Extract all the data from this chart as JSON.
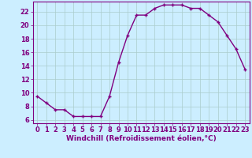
{
  "x": [
    0,
    1,
    2,
    3,
    4,
    5,
    6,
    7,
    8,
    9,
    10,
    11,
    12,
    13,
    14,
    15,
    16,
    17,
    18,
    19,
    20,
    21,
    22,
    23
  ],
  "y": [
    9.5,
    8.5,
    7.5,
    7.5,
    6.5,
    6.5,
    6.5,
    6.5,
    9.5,
    14.5,
    18.5,
    21.5,
    21.5,
    22.5,
    23.0,
    23.0,
    23.0,
    22.5,
    22.5,
    21.5,
    20.5,
    18.5,
    16.5,
    13.5
  ],
  "line_color": "#800080",
  "marker": "+",
  "marker_size": 3,
  "background_color": "#cceeff",
  "grid_color": "#aacccc",
  "xlabel": "Windchill (Refroidissement éolien,°C)",
  "xlim": [
    -0.5,
    23.5
  ],
  "ylim": [
    5.5,
    23.5
  ],
  "yticks": [
    6,
    8,
    10,
    12,
    14,
    16,
    18,
    20,
    22
  ],
  "xticks": [
    0,
    1,
    2,
    3,
    4,
    5,
    6,
    7,
    8,
    9,
    10,
    11,
    12,
    13,
    14,
    15,
    16,
    17,
    18,
    19,
    20,
    21,
    22,
    23
  ],
  "xlabel_fontsize": 6.5,
  "tick_fontsize": 6,
  "line_width": 1.0,
  "marker_edge_width": 1.0
}
